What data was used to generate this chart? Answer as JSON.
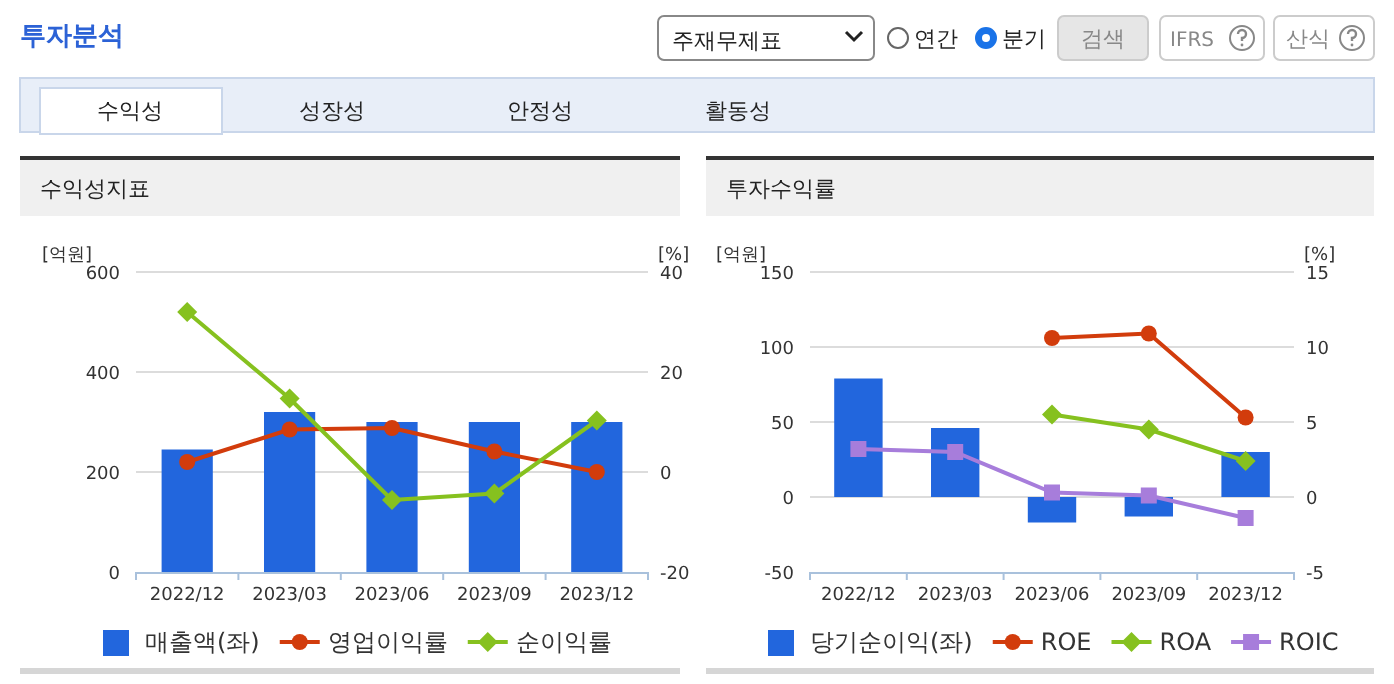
{
  "chart_data": [
    {
      "type": "bar",
      "title": "수익성지표",
      "ylabel": "[억원]",
      "y2label": "[%]",
      "categories": [
        "2022/12",
        "2023/03",
        "2023/06",
        "2023/09",
        "2023/12"
      ],
      "series": [
        {
          "name": "매출액(좌)",
          "color": "#2266dd",
          "values": [
            245,
            320,
            300,
            300,
            300
          ]
        },
        {
          "name": "영업이익률",
          "type": "line",
          "axis": "y2",
          "marker": "circle",
          "color": "#d23c0c",
          "values": [
            2.0,
            8.5,
            8.8,
            4.1,
            0
          ]
        },
        {
          "name": "순이익률",
          "type": "line",
          "axis": "y2",
          "marker": "diamond",
          "color": "#86c11f",
          "values": [
            32,
            14.7,
            -5.6,
            -4.3,
            10.3
          ]
        }
      ],
      "ylim": [
        0,
        600
      ],
      "yticks": [
        0,
        200,
        400,
        600
      ],
      "y2lim": [
        -20,
        40
      ],
      "y2ticks": [
        -20,
        0,
        20,
        40
      ],
      "grid": "y",
      "legend": "bottom",
      "annotations": [
        "투자분석",
        "주재무제표",
        "연간",
        "분기",
        "검색",
        "IFRS",
        "산식",
        "수익성",
        "성장성",
        "안정성",
        "활동성"
      ]
    },
    {
      "type": "bar",
      "title": "투자수익률",
      "ylabel": "[억원]",
      "y2label": "[%]",
      "categories": [
        "2022/12",
        "2023/03",
        "2023/06",
        "2023/09",
        "2023/12"
      ],
      "series": [
        {
          "name": "당기순이익(좌)",
          "color": "#2266dd",
          "values": [
            79,
            46,
            -17,
            -13,
            30
          ]
        },
        {
          "name": "ROE",
          "type": "line",
          "axis": "y2",
          "marker": "circle",
          "color": "#d23c0c",
          "values": [
            null,
            null,
            10.6,
            10.9,
            5.3
          ]
        },
        {
          "name": "ROA",
          "type": "line",
          "axis": "y2",
          "marker": "diamond",
          "color": "#86c11f",
          "values": [
            null,
            null,
            5.5,
            4.5,
            2.4
          ]
        },
        {
          "name": "ROIC",
          "type": "line",
          "axis": "y2",
          "marker": "square",
          "color": "#a77ddb",
          "values": [
            3.2,
            3.0,
            0.3,
            0.1,
            -1.4
          ]
        }
      ],
      "ylim": [
        -50,
        150
      ],
      "yticks": [
        -50,
        0,
        50,
        100,
        150
      ],
      "y2lim": [
        -5,
        15
      ],
      "y2ticks": [
        -5,
        0,
        5,
        10,
        15
      ],
      "grid": "y",
      "legend": "bottom"
    }
  ]
}
